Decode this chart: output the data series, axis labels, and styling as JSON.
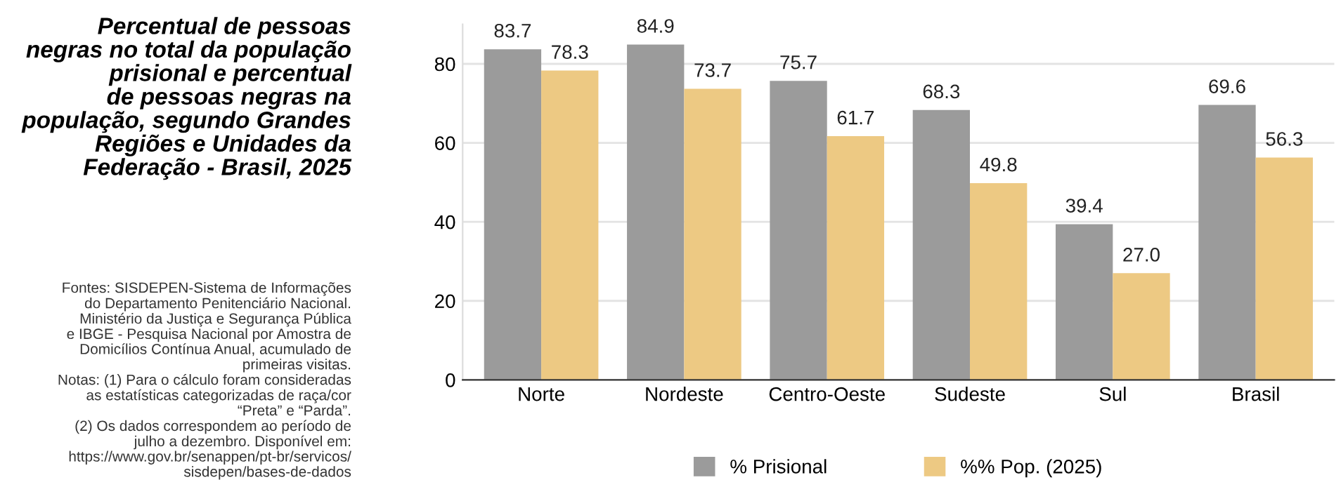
{
  "chart_data": {
    "type": "bar",
    "title": "Percentual de pessoas\nnegras no total da população\nprisional e percentual\nde pessoas negras na\npopulação, segundo Grandes\nRegiões e Unidades da\nFederação - Brasil, 2025",
    "annotations": [
      "Fontes: SISDEPEN-Sistema de Informações\ndo Departamento Penitenciário Nacional.\nMinistério da Justiça e Segurança Pública\ne IBGE - Pesquisa Nacional por Amostra de\nDomicílios Contínua Anual, acumulado de\nprimeiras visitas.\nNotas: (1) Para o cálculo foram consideradas\nas estatísticas categorizadas de raça/cor\n“Preta” e “Parda”.\n(2) Os dados correspondem ao período de\njulho a dezembro. Disponível em:\nhttps://www.gov.br/senappen/pt-br/servicos/\nsisdepen/bases-de-dados"
    ],
    "categories": [
      "Norte",
      "Nordeste",
      "Centro-Oeste",
      "Sudeste",
      "Sul",
      "Brasil"
    ],
    "series": [
      {
        "name": "% Prisional",
        "color": "#9b9b9b",
        "values": [
          83.7,
          84.9,
          75.7,
          68.3,
          39.4,
          69.6
        ],
        "value_labels": [
          "83.7",
          "84.9",
          "75.7",
          "68.3",
          "39.4",
          "69.6"
        ]
      },
      {
        "name": "%% Pop. (2025)",
        "color": "#edc983",
        "values": [
          78.3,
          73.7,
          61.7,
          49.8,
          27.0,
          56.3
        ],
        "value_labels": [
          "78.3",
          "73.7",
          "61.7",
          "49.8",
          "27.0",
          "56.3"
        ]
      }
    ],
    "ylim": [
      0,
      90
    ],
    "yticks": [
      0,
      20,
      40,
      60,
      80
    ],
    "grid": "y",
    "legend": "bottom"
  }
}
